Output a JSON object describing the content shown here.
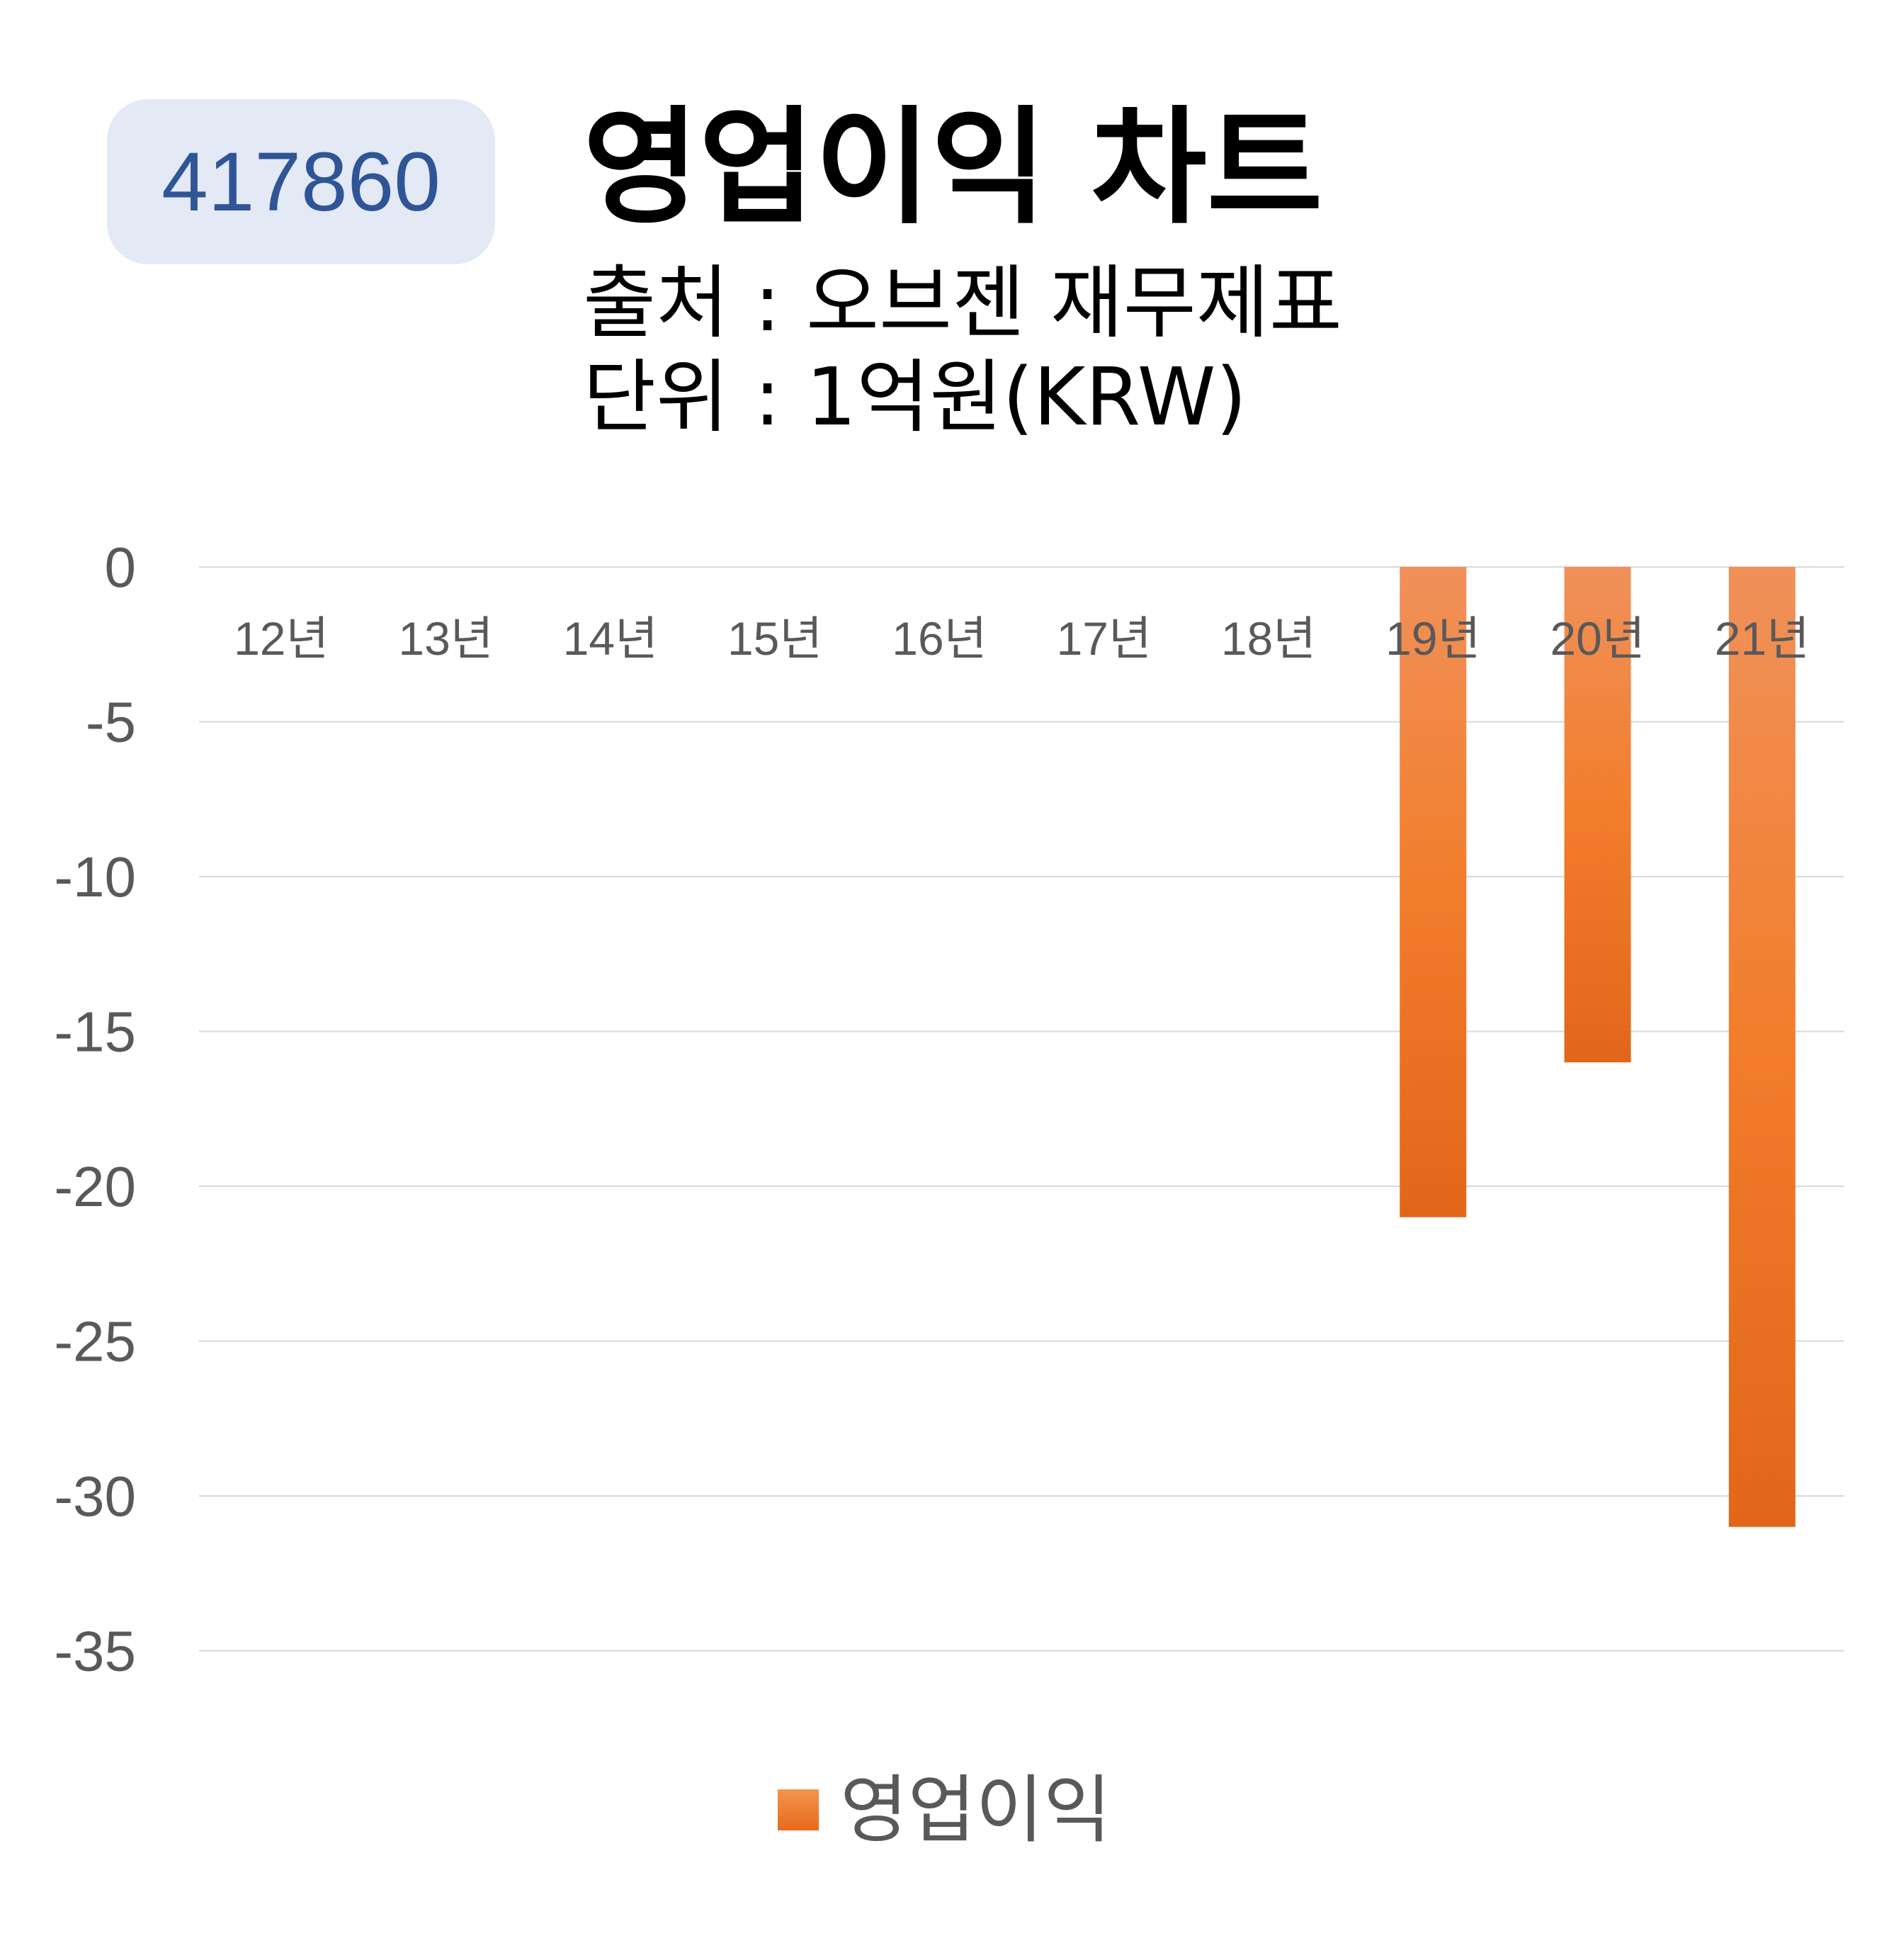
{
  "badge": {
    "code": "417860"
  },
  "header": {
    "title": "영업이익 차트",
    "source": "출처 : 오브젠 재무제표",
    "unit": "단위 : 1억원(KRW)"
  },
  "colors": {
    "bar_top": "#f0915a",
    "bar_mid": "#f27d2b",
    "bar_bottom": "#e2661a",
    "badge_bg": "#e3e9f5",
    "badge_text": "#2f5597"
  },
  "chart_data": {
    "type": "bar",
    "categories": [
      "12년",
      "13년",
      "14년",
      "15년",
      "16년",
      "17년",
      "18년",
      "19년",
      "20년",
      "21년"
    ],
    "series": [
      {
        "name": "영업이익",
        "values": [
          null,
          null,
          null,
          null,
          null,
          null,
          null,
          -21,
          -16,
          -31
        ]
      }
    ],
    "yticks": [
      "0",
      "-5",
      "-10",
      "-15",
      "-20",
      "-25",
      "-30",
      "-35"
    ],
    "ylim": [
      -35,
      0
    ],
    "grid": true,
    "legend_position": "bottom"
  }
}
